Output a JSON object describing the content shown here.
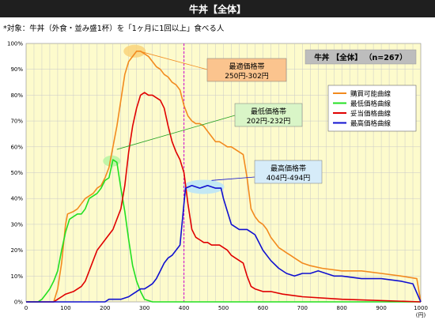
{
  "header": {
    "title": "牛丼【全体】",
    "subtitle": "*対象：牛丼（外食・並み盛1杯）を「1ヶ月に1回以上」食べる人"
  },
  "colors": {
    "purchasable": "#f28a1e",
    "lowest": "#22e022",
    "appropriate": "#e00000",
    "highest": "#1010d0",
    "plot_bg": "#fdfbcc",
    "box_orange_bg": "#fbc48e",
    "box_green_bg": "#d9f5c7",
    "box_blue_bg": "#d6ecf9"
  },
  "chart_data": {
    "type": "line",
    "title": "牛丼【全体】（n=267）",
    "xlabel": "(円)",
    "ylabel": "",
    "xlim": [
      0,
      1000
    ],
    "ylim": [
      0,
      100
    ],
    "x_ticks": [
      "0",
      "100",
      "200",
      "300",
      "400",
      "500",
      "600",
      "700",
      "800",
      "900",
      "1000"
    ],
    "y_ticks": [
      "0%",
      "10%",
      "20%",
      "30%",
      "40%",
      "50%",
      "60%",
      "70%",
      "80%",
      "90%",
      "100%"
    ],
    "grid": true,
    "legend_position": "top-right",
    "reference_line_x": 400,
    "series": [
      {
        "name": "購買可能曲線",
        "key": "purchasable",
        "points": [
          [
            0,
            0
          ],
          [
            70,
            0
          ],
          [
            80,
            5
          ],
          [
            90,
            15
          ],
          [
            100,
            30
          ],
          [
            105,
            34
          ],
          [
            120,
            35
          ],
          [
            130,
            36
          ],
          [
            140,
            38
          ],
          [
            150,
            40
          ],
          [
            160,
            41
          ],
          [
            170,
            42
          ],
          [
            180,
            44
          ],
          [
            190,
            45
          ],
          [
            200,
            48
          ],
          [
            210,
            52
          ],
          [
            220,
            60
          ],
          [
            230,
            68
          ],
          [
            240,
            78
          ],
          [
            250,
            88
          ],
          [
            260,
            93
          ],
          [
            270,
            95
          ],
          [
            280,
            97
          ],
          [
            290,
            97
          ],
          [
            300,
            96
          ],
          [
            310,
            95
          ],
          [
            320,
            93
          ],
          [
            330,
            91
          ],
          [
            340,
            90
          ],
          [
            350,
            88
          ],
          [
            360,
            87
          ],
          [
            370,
            85
          ],
          [
            380,
            84
          ],
          [
            390,
            82
          ],
          [
            400,
            76
          ],
          [
            410,
            72
          ],
          [
            420,
            70
          ],
          [
            430,
            69
          ],
          [
            440,
            69
          ],
          [
            450,
            68
          ],
          [
            460,
            66
          ],
          [
            470,
            64
          ],
          [
            480,
            62
          ],
          [
            490,
            62
          ],
          [
            500,
            61
          ],
          [
            510,
            60
          ],
          [
            520,
            60
          ],
          [
            530,
            59
          ],
          [
            540,
            58
          ],
          [
            550,
            57
          ],
          [
            560,
            48
          ],
          [
            570,
            36
          ],
          [
            580,
            33
          ],
          [
            590,
            31
          ],
          [
            600,
            30
          ],
          [
            610,
            28
          ],
          [
            620,
            25
          ],
          [
            630,
            23
          ],
          [
            640,
            21
          ],
          [
            650,
            20
          ],
          [
            660,
            19
          ],
          [
            670,
            18
          ],
          [
            680,
            17
          ],
          [
            700,
            15
          ],
          [
            720,
            14
          ],
          [
            750,
            13
          ],
          [
            800,
            12
          ],
          [
            850,
            12
          ],
          [
            900,
            11
          ],
          [
            950,
            10
          ],
          [
            990,
            9
          ],
          [
            1000,
            0
          ]
        ]
      },
      {
        "name": "最低価格曲線",
        "key": "lowest",
        "points": [
          [
            0,
            0
          ],
          [
            30,
            0
          ],
          [
            40,
            1
          ],
          [
            50,
            3
          ],
          [
            60,
            5
          ],
          [
            70,
            8
          ],
          [
            80,
            12
          ],
          [
            90,
            20
          ],
          [
            100,
            27
          ],
          [
            110,
            32
          ],
          [
            120,
            33
          ],
          [
            130,
            34
          ],
          [
            140,
            34
          ],
          [
            150,
            36
          ],
          [
            160,
            40
          ],
          [
            170,
            41
          ],
          [
            180,
            42
          ],
          [
            190,
            44
          ],
          [
            200,
            47
          ],
          [
            210,
            48
          ],
          [
            220,
            55
          ],
          [
            230,
            54
          ],
          [
            240,
            44
          ],
          [
            250,
            35
          ],
          [
            260,
            24
          ],
          [
            270,
            14
          ],
          [
            280,
            8
          ],
          [
            290,
            4
          ],
          [
            300,
            1
          ],
          [
            320,
            0
          ],
          [
            1000,
            0
          ]
        ]
      },
      {
        "name": "妥当価格曲線",
        "key": "appropriate",
        "points": [
          [
            0,
            0
          ],
          [
            70,
            0
          ],
          [
            80,
            1
          ],
          [
            90,
            2
          ],
          [
            100,
            3
          ],
          [
            120,
            4
          ],
          [
            140,
            6
          ],
          [
            150,
            8
          ],
          [
            160,
            12
          ],
          [
            170,
            16
          ],
          [
            180,
            20
          ],
          [
            190,
            22
          ],
          [
            200,
            24
          ],
          [
            220,
            28
          ],
          [
            240,
            36
          ],
          [
            250,
            45
          ],
          [
            260,
            58
          ],
          [
            270,
            68
          ],
          [
            280,
            75
          ],
          [
            290,
            80
          ],
          [
            300,
            81
          ],
          [
            310,
            80
          ],
          [
            320,
            80
          ],
          [
            330,
            79
          ],
          [
            340,
            78
          ],
          [
            350,
            75
          ],
          [
            360,
            68
          ],
          [
            370,
            62
          ],
          [
            380,
            58
          ],
          [
            390,
            55
          ],
          [
            400,
            50
          ],
          [
            410,
            38
          ],
          [
            420,
            28
          ],
          [
            430,
            25
          ],
          [
            440,
            24
          ],
          [
            450,
            23
          ],
          [
            460,
            23
          ],
          [
            470,
            22
          ],
          [
            480,
            22
          ],
          [
            490,
            22
          ],
          [
            500,
            21
          ],
          [
            510,
            20
          ],
          [
            520,
            18
          ],
          [
            530,
            17
          ],
          [
            540,
            16
          ],
          [
            550,
            15
          ],
          [
            560,
            10
          ],
          [
            570,
            6
          ],
          [
            580,
            5
          ],
          [
            600,
            4
          ],
          [
            620,
            4
          ],
          [
            650,
            3
          ],
          [
            700,
            2
          ],
          [
            800,
            1
          ],
          [
            1000,
            0
          ]
        ]
      },
      {
        "name": "最高価格曲線",
        "key": "highest",
        "points": [
          [
            0,
            0
          ],
          [
            180,
            0
          ],
          [
            200,
            0
          ],
          [
            210,
            1
          ],
          [
            220,
            1
          ],
          [
            240,
            1
          ],
          [
            260,
            2
          ],
          [
            270,
            3
          ],
          [
            280,
            4
          ],
          [
            290,
            5
          ],
          [
            300,
            5
          ],
          [
            310,
            6
          ],
          [
            320,
            7
          ],
          [
            330,
            9
          ],
          [
            340,
            12
          ],
          [
            350,
            15
          ],
          [
            360,
            17
          ],
          [
            370,
            18
          ],
          [
            380,
            20
          ],
          [
            390,
            22
          ],
          [
            400,
            38
          ],
          [
            404,
            44
          ],
          [
            420,
            45
          ],
          [
            440,
            44
          ],
          [
            460,
            45
          ],
          [
            480,
            44
          ],
          [
            490,
            44
          ],
          [
            494,
            44
          ],
          [
            500,
            40
          ],
          [
            510,
            35
          ],
          [
            520,
            30
          ],
          [
            530,
            29
          ],
          [
            540,
            28
          ],
          [
            550,
            28
          ],
          [
            560,
            28
          ],
          [
            570,
            27
          ],
          [
            580,
            26
          ],
          [
            590,
            23
          ],
          [
            600,
            20
          ],
          [
            620,
            16
          ],
          [
            640,
            13
          ],
          [
            660,
            11
          ],
          [
            680,
            10
          ],
          [
            700,
            11
          ],
          [
            720,
            11
          ],
          [
            740,
            12
          ],
          [
            760,
            11
          ],
          [
            780,
            10
          ],
          [
            800,
            10
          ],
          [
            850,
            9
          ],
          [
            900,
            9
          ],
          [
            950,
            8
          ],
          [
            980,
            7
          ],
          [
            1000,
            0
          ]
        ]
      }
    ]
  },
  "annotations": {
    "optimal": {
      "label": "最適価格帯",
      "range": "250円-302円"
    },
    "lowest": {
      "label": "最低価格帯",
      "range": "202円-232円"
    },
    "highest": {
      "label": "最高価格帯",
      "range": "404円-494円"
    },
    "sample_label": "牛丼 【全体】 （n=267）"
  }
}
